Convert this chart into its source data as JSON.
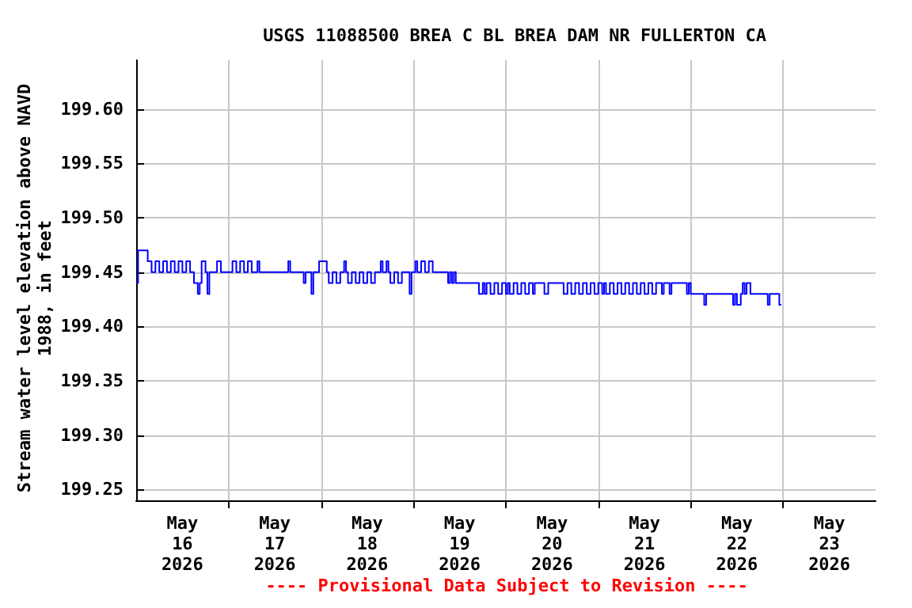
{
  "chart_data": {
    "type": "step",
    "title": "USGS 11088500 BREA C BL BREA DAM NR FULLERTON CA",
    "ylabel": "Stream water level elevation above NAVD 1988, in feet",
    "annotations": [
      "---- Provisional Data Subject to Revision ----"
    ],
    "series": [
      {
        "color": "#0000ff",
        "x": [
          "2026-05-16T00:00",
          "2026-05-16T00:30",
          "2026-05-16T03:00",
          "2026-05-16T04:00",
          "2026-05-16T05:00",
          "2026-05-16T06:00",
          "2026-05-16T07:00",
          "2026-05-16T08:00",
          "2026-05-16T09:00",
          "2026-05-16T10:00",
          "2026-05-16T11:00",
          "2026-05-16T12:00",
          "2026-05-16T13:00",
          "2026-05-16T14:00",
          "2026-05-16T15:00",
          "2026-05-16T16:00",
          "2026-05-16T16:30",
          "2026-05-16T17:00",
          "2026-05-16T18:00",
          "2026-05-16T18:30",
          "2026-05-16T19:00",
          "2026-05-16T21:00",
          "2026-05-16T22:00",
          "2026-05-17T01:00",
          "2026-05-17T02:00",
          "2026-05-17T03:00",
          "2026-05-17T04:00",
          "2026-05-17T05:00",
          "2026-05-17T06:00",
          "2026-05-17T07:30",
          "2026-05-17T08:00",
          "2026-05-17T15:30",
          "2026-05-17T16:00",
          "2026-05-17T19:30",
          "2026-05-17T20:00",
          "2026-05-17T21:30",
          "2026-05-17T22:00",
          "2026-05-17T23:30",
          "2026-05-18T01:30",
          "2026-05-18T02:00",
          "2026-05-18T03:00",
          "2026-05-18T04:00",
          "2026-05-18T05:00",
          "2026-05-18T06:00",
          "2026-05-18T06:30",
          "2026-05-18T07:00",
          "2026-05-18T08:00",
          "2026-05-18T09:00",
          "2026-05-18T10:00",
          "2026-05-18T11:00",
          "2026-05-18T12:00",
          "2026-05-18T13:00",
          "2026-05-18T14:00",
          "2026-05-18T15:30",
          "2026-05-18T16:00",
          "2026-05-18T17:00",
          "2026-05-18T17:30",
          "2026-05-18T18:00",
          "2026-05-18T19:00",
          "2026-05-18T20:00",
          "2026-05-18T21:00",
          "2026-05-18T23:00",
          "2026-05-18T23:30",
          "2026-05-19T00:30",
          "2026-05-19T01:00",
          "2026-05-19T02:00",
          "2026-05-19T03:00",
          "2026-05-19T04:00",
          "2026-05-19T05:00",
          "2026-05-19T09:00",
          "2026-05-19T09:30",
          "2026-05-19T10:00",
          "2026-05-19T10:30",
          "2026-05-19T11:00",
          "2026-05-19T17:00",
          "2026-05-19T18:00",
          "2026-05-19T18:30",
          "2026-05-19T19:00",
          "2026-05-19T20:00",
          "2026-05-19T21:00",
          "2026-05-19T22:00",
          "2026-05-19T23:00",
          "2026-05-20T00:00",
          "2026-05-20T00:30",
          "2026-05-20T01:00",
          "2026-05-20T02:00",
          "2026-05-20T03:00",
          "2026-05-20T04:00",
          "2026-05-20T05:00",
          "2026-05-20T06:00",
          "2026-05-20T07:00",
          "2026-05-20T07:30",
          "2026-05-20T10:00",
          "2026-05-20T11:00",
          "2026-05-20T15:00",
          "2026-05-20T16:00",
          "2026-05-20T17:00",
          "2026-05-20T18:00",
          "2026-05-20T19:00",
          "2026-05-20T20:00",
          "2026-05-20T21:00",
          "2026-05-20T22:00",
          "2026-05-20T23:00",
          "2026-05-21T00:00",
          "2026-05-21T01:00",
          "2026-05-21T01:30",
          "2026-05-21T02:00",
          "2026-05-21T03:00",
          "2026-05-21T04:00",
          "2026-05-21T05:00",
          "2026-05-21T06:00",
          "2026-05-21T07:00",
          "2026-05-21T08:00",
          "2026-05-21T09:00",
          "2026-05-21T10:00",
          "2026-05-21T11:00",
          "2026-05-21T12:00",
          "2026-05-21T13:00",
          "2026-05-21T14:00",
          "2026-05-21T15:00",
          "2026-05-21T16:30",
          "2026-05-21T17:00",
          "2026-05-21T18:30",
          "2026-05-21T19:00",
          "2026-05-21T23:00",
          "2026-05-21T23:30",
          "2026-05-22T00:00",
          "2026-05-22T03:30",
          "2026-05-22T04:00",
          "2026-05-22T11:00",
          "2026-05-22T11:30",
          "2026-05-22T12:00",
          "2026-05-22T13:00",
          "2026-05-22T13:30",
          "2026-05-22T14:00",
          "2026-05-22T14:30",
          "2026-05-22T15:30",
          "2026-05-22T20:00",
          "2026-05-22T20:30",
          "2026-05-22T23:00",
          "2026-05-22T23:30"
        ],
        "values": [
          199.44,
          199.47,
          199.46,
          199.45,
          199.46,
          199.45,
          199.46,
          199.45,
          199.46,
          199.45,
          199.46,
          199.45,
          199.46,
          199.45,
          199.44,
          199.43,
          199.44,
          199.46,
          199.45,
          199.43,
          199.45,
          199.46,
          199.45,
          199.46,
          199.45,
          199.46,
          199.45,
          199.46,
          199.45,
          199.46,
          199.45,
          199.46,
          199.45,
          199.44,
          199.45,
          199.43,
          199.45,
          199.46,
          199.45,
          199.44,
          199.45,
          199.44,
          199.45,
          199.46,
          199.45,
          199.44,
          199.45,
          199.44,
          199.45,
          199.44,
          199.45,
          199.44,
          199.45,
          199.46,
          199.45,
          199.46,
          199.45,
          199.44,
          199.45,
          199.44,
          199.45,
          199.43,
          199.45,
          199.46,
          199.45,
          199.46,
          199.45,
          199.46,
          199.45,
          199.44,
          199.45,
          199.44,
          199.45,
          199.44,
          199.43,
          199.44,
          199.43,
          199.44,
          199.43,
          199.44,
          199.43,
          199.44,
          199.43,
          199.44,
          199.43,
          199.44,
          199.43,
          199.44,
          199.43,
          199.44,
          199.43,
          199.44,
          199.43,
          199.44,
          199.43,
          199.44,
          199.43,
          199.44,
          199.43,
          199.44,
          199.43,
          199.44,
          199.43,
          199.44,
          199.43,
          199.44,
          199.43,
          199.44,
          199.43,
          199.44,
          199.43,
          199.44,
          199.43,
          199.44,
          199.43,
          199.44,
          199.43,
          199.44,
          199.43,
          199.44,
          199.43,
          199.44,
          199.43,
          199.44,
          199.43,
          199.44,
          199.43,
          199.42,
          199.43,
          199.42,
          199.43,
          199.42,
          199.43,
          199.44,
          199.43,
          199.44,
          199.43,
          199.42,
          199.43,
          199.42,
          199.42
        ]
      }
    ],
    "xlim": [
      "2026-05-16T00:00",
      "2026-05-24T00:00"
    ],
    "xticks": [
      {
        "value": "2026-05-16T12:00",
        "label": "May 16 2026"
      },
      {
        "value": "2026-05-17T12:00",
        "label": "May 17 2026"
      },
      {
        "value": "2026-05-18T12:00",
        "label": "May 18 2026"
      },
      {
        "value": "2026-05-19T12:00",
        "label": "May 19 2026"
      },
      {
        "value": "2026-05-20T12:00",
        "label": "May 20 2026"
      },
      {
        "value": "2026-05-21T12:00",
        "label": "May 21 2026"
      },
      {
        "value": "2026-05-22T12:00",
        "label": "May 22 2026"
      },
      {
        "value": "2026-05-23T12:00",
        "label": "May 23 2026"
      },
      {
        "value": "2026-05-17T00:00",
        "label": null
      },
      {
        "value": "2026-05-18T00:00",
        "label": null
      },
      {
        "value": "2026-05-19T00:00",
        "label": null
      },
      {
        "value": "2026-05-20T00:00",
        "label": null
      },
      {
        "value": "2026-05-21T00:00",
        "label": null
      },
      {
        "value": "2026-05-22T00:00",
        "label": null
      },
      {
        "value": "2026-05-23T00:00",
        "label": null
      }
    ],
    "ylim": [
      199.24,
      199.645
    ],
    "yticks": [
      {
        "value": 199.25,
        "label": "199.25"
      },
      {
        "value": 199.3,
        "label": "199.30"
      },
      {
        "value": 199.35,
        "label": "199.35"
      },
      {
        "value": 199.4,
        "label": "199.40"
      },
      {
        "value": 199.45,
        "label": "199.45"
      },
      {
        "value": 199.5,
        "label": "199.50"
      },
      {
        "value": 199.55,
        "label": "199.55"
      },
      {
        "value": 199.6,
        "label": "199.60"
      }
    ],
    "grid": true,
    "marker": "none",
    "line_style": "solid"
  }
}
